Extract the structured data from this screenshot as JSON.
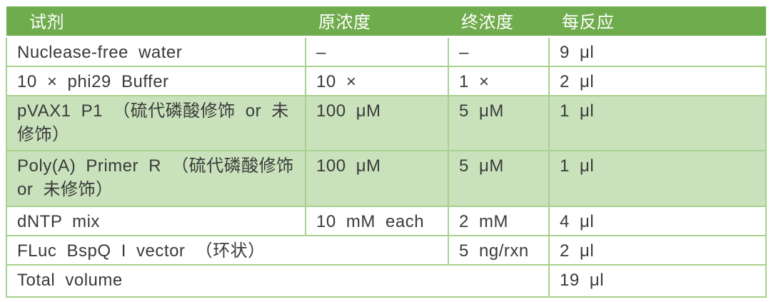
{
  "colors": {
    "header_bg": "#6FAC4D",
    "band_bg": "#C9E2BC",
    "border": "#A9D18E",
    "text": "#3A3A3A",
    "header_text": "#FFFFFF"
  },
  "table": {
    "columns": [
      {
        "label": "试剂"
      },
      {
        "label": "原浓度"
      },
      {
        "label": "终浓度"
      },
      {
        "label": "每反应"
      }
    ],
    "rows": [
      {
        "cells": [
          "Nuclease-free water",
          "–",
          "–",
          "9 μl"
        ]
      },
      {
        "cells": [
          "10 × phi29 Buffer",
          "10 ×",
          "1 ×",
          "2 μl"
        ]
      },
      {
        "cells": [
          "pVAX1 P1 （硫代磷酸修饰 or 未修饰）",
          "100 μM",
          "5 μM",
          "1 μl"
        ]
      },
      {
        "cells": [
          "Poly(A) Primer R （硫代磷酸修饰 or 未修饰）",
          "100 μM",
          "5 μM",
          "1 μl"
        ]
      },
      {
        "cells": [
          "dNTP mix",
          "10 mM each",
          "2 mM",
          "4 μl"
        ]
      },
      {
        "cells": [
          "FLuc BspQ I vector （环状）",
          "5 ng/rxn",
          "2 μl"
        ]
      },
      {
        "cells": [
          "Total volume",
          "19 μl"
        ]
      }
    ]
  }
}
